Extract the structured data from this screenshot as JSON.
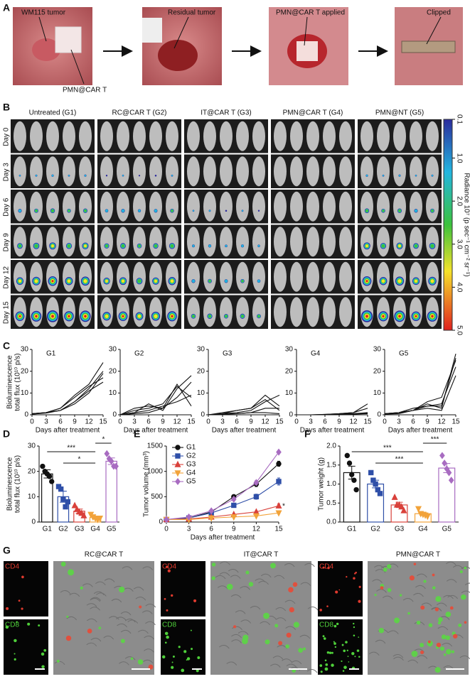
{
  "panel_a": {
    "letter": "A",
    "labels": [
      "WM115 tumor",
      "PMN@CAR T",
      "Residual tumor",
      "PMN@CAR T applied",
      "Clipped"
    ]
  },
  "panel_b": {
    "letter": "B",
    "groups": [
      "Untreated (G1)",
      "RC@CAR T (G2)",
      "IT@CAR T (G3)",
      "PMN@CAR T (G4)",
      "PMN@NT (G5)"
    ],
    "days": [
      "Day 0",
      "Day 3",
      "Day 6",
      "Day 9",
      "Day 12",
      "Day 15"
    ],
    "colorbar": {
      "label": "Radiance 10⁷ (p sec⁻¹ cm⁻² sr⁻¹)",
      "lim": [
        0.1,
        5
      ],
      "ticks": [
        0.1,
        {
          "value": 1,
          "label": "1.0"
        },
        {
          "value": 2,
          "label": "2.0"
        },
        {
          "value": 3,
          "label": "3.0"
        },
        {
          "value": 4,
          "label": "4.0"
        },
        {
          "value": 5,
          "label": "5.0"
        }
      ]
    }
  },
  "chart_data": [
    {
      "type": "line",
      "panel": "C",
      "title": "G1",
      "color": "#111111",
      "ylabel": [
        "Bioluminescence",
        "total flux (10¹⁰ p/s)"
      ],
      "xlabel": "Days after treatment",
      "x": [
        0,
        3,
        6,
        9,
        12,
        15
      ],
      "xlim": [
        0,
        15
      ],
      "xticks": [
        0,
        3,
        6,
        9,
        12,
        15
      ],
      "ylim": [
        0,
        30
      ],
      "yticks": [
        0,
        10,
        20,
        30
      ],
      "series": [
        {
          "values": [
            0.5,
            1,
            3,
            9,
            14,
            24
          ]
        },
        {
          "values": [
            0.5,
            1,
            2,
            6,
            12,
            20
          ]
        },
        {
          "values": [
            0.3,
            0.8,
            2,
            5,
            10,
            19
          ]
        },
        {
          "values": [
            0.5,
            1,
            3,
            8,
            13,
            17
          ]
        },
        {
          "values": [
            0.3,
            1,
            2,
            6,
            11,
            15
          ]
        }
      ]
    },
    {
      "type": "line",
      "title": "G2",
      "color": "#111111",
      "xlabel": "Days after treatment",
      "x": [
        0,
        3,
        6,
        9,
        12,
        15
      ],
      "xlim": [
        0,
        15
      ],
      "xticks": [
        0,
        3,
        6,
        9,
        12,
        15
      ],
      "ylim": [
        0,
        30
      ],
      "yticks": [
        0,
        10,
        20,
        30
      ],
      "series": [
        {
          "values": [
            0,
            1,
            5,
            2,
            12,
            18
          ]
        },
        {
          "values": [
            0,
            3,
            4,
            3,
            8,
            15
          ]
        },
        {
          "values": [
            0,
            2,
            3,
            5,
            13,
            8
          ]
        },
        {
          "values": [
            0,
            1,
            2,
            4,
            6,
            9
          ]
        },
        {
          "values": [
            0,
            0.5,
            1,
            3,
            14,
            4
          ]
        }
      ]
    },
    {
      "type": "line",
      "title": "G3",
      "color": "#111111",
      "xlabel": "Days after treatment",
      "x": [
        0,
        3,
        6,
        9,
        12,
        15
      ],
      "xlim": [
        0,
        15
      ],
      "xticks": [
        0,
        3,
        6,
        9,
        12,
        15
      ],
      "ylim": [
        0,
        30
      ],
      "yticks": [
        0,
        10,
        20,
        30
      ],
      "series": [
        {
          "values": [
            0,
            1,
            2,
            3,
            9,
            4
          ]
        },
        {
          "values": [
            0,
            0.5,
            1,
            2,
            6,
            9
          ]
        },
        {
          "values": [
            0,
            0.5,
            2,
            3,
            7,
            2
          ]
        },
        {
          "values": [
            0,
            0.3,
            0.5,
            1,
            3,
            3
          ]
        },
        {
          "values": [
            0,
            0.2,
            0.5,
            1,
            1,
            0.5
          ]
        }
      ]
    },
    {
      "type": "line",
      "title": "G4",
      "color": "#111111",
      "xlabel": "Days after treatment",
      "x": [
        0,
        3,
        6,
        9,
        12,
        15
      ],
      "xlim": [
        0,
        15
      ],
      "xticks": [
        0,
        3,
        6,
        9,
        12,
        15
      ],
      "ylim": [
        0,
        30
      ],
      "yticks": [
        0,
        10,
        20,
        30
      ],
      "series": [
        {
          "values": [
            0,
            0,
            0.2,
            0.5,
            1,
            5
          ]
        },
        {
          "values": [
            0,
            0,
            0.2,
            0.5,
            1,
            3
          ]
        },
        {
          "values": [
            0,
            0,
            0,
            0.3,
            0.5,
            1
          ]
        },
        {
          "values": [
            0,
            0,
            0,
            0.2,
            0.5,
            0.8
          ]
        },
        {
          "values": [
            0,
            0,
            0,
            0.1,
            0.3,
            0.5
          ]
        }
      ]
    },
    {
      "type": "line",
      "title": "G5",
      "color": "#111111",
      "xlabel": "Days after treatment",
      "x": [
        0,
        3,
        6,
        9,
        12,
        15
      ],
      "xlim": [
        0,
        15
      ],
      "xticks": [
        0,
        3,
        6,
        9,
        12,
        15
      ],
      "ylim": [
        0,
        30
      ],
      "yticks": [
        0,
        10,
        20,
        30
      ],
      "series": [
        {
          "values": [
            0.5,
            1,
            2,
            5,
            3,
            28
          ]
        },
        {
          "values": [
            0.5,
            1,
            2,
            4,
            4,
            26
          ]
        },
        {
          "values": [
            0.3,
            1,
            2,
            6,
            8,
            25
          ]
        },
        {
          "values": [
            0.5,
            1,
            3,
            4,
            5,
            22
          ]
        },
        {
          "values": [
            0.3,
            0.5,
            2,
            3,
            2,
            18
          ]
        }
      ]
    },
    {
      "type": "bar",
      "panel": "D",
      "ylabel": [
        "Bioluminescence",
        "total flux (10¹⁰ p/s)"
      ],
      "categories": [
        "G1",
        "G2",
        "G3",
        "G4",
        "G5"
      ],
      "values": [
        19,
        10,
        4.3,
        1.8,
        24
      ],
      "errors": [
        1.6,
        2.2,
        0.8,
        0.6,
        1.3
      ],
      "points": [
        [
          22,
          20,
          19,
          18,
          16
        ],
        [
          14,
          13,
          9,
          6,
          8
        ],
        [
          6.5,
          5,
          4,
          3.5,
          2.5
        ],
        [
          3,
          2,
          1.5,
          1,
          1.5
        ],
        [
          27,
          25,
          24,
          22,
          22
        ]
      ],
      "colors": [
        "#111111",
        "#2f4fa8",
        "#d9413b",
        "#f2a33a",
        "#a86cc1"
      ],
      "ylim": [
        0,
        30
      ],
      "yticks": [
        0,
        10,
        20,
        30
      ],
      "annotations": [
        {
          "text": "***",
          "between": [
            "G1",
            "G4"
          ]
        },
        {
          "text": "*",
          "between": [
            "G2",
            "G4"
          ]
        },
        {
          "text": "*",
          "between": [
            "G4",
            "G5"
          ]
        }
      ]
    },
    {
      "type": "line",
      "panel": "E",
      "ylabel": "Tumor volume (mm³)",
      "xlabel": "Days after treatment",
      "legend": "upper left",
      "x": [
        0,
        3,
        6,
        9,
        12,
        15
      ],
      "xlim": [
        0,
        15
      ],
      "xticks": [
        0,
        3,
        6,
        9,
        12,
        15
      ],
      "ylim": [
        0,
        1500
      ],
      "yticks": [
        0,
        500,
        1000,
        1500
      ],
      "series": [
        {
          "name": "G1",
          "color": "#111111",
          "marker": "circle",
          "values": [
            50,
            80,
            200,
            500,
            750,
            1150
          ],
          "errors": [
            5,
            10,
            20,
            40,
            50,
            50
          ]
        },
        {
          "name": "G2",
          "color": "#2f4fa8",
          "marker": "square",
          "values": [
            50,
            80,
            180,
            330,
            500,
            800
          ],
          "errors": [
            5,
            10,
            20,
            30,
            50,
            70
          ]
        },
        {
          "name": "G3",
          "color": "#d9413b",
          "marker": "triangle",
          "values": [
            50,
            60,
            100,
            150,
            200,
            320
          ],
          "errors": [
            5,
            8,
            10,
            15,
            20,
            40
          ]
        },
        {
          "name": "G4",
          "color": "#f2a33a",
          "marker": "triangle-down",
          "values": [
            50,
            50,
            80,
            100,
            120,
            180
          ],
          "errors": [
            5,
            5,
            8,
            10,
            15,
            20
          ]
        },
        {
          "name": "G5",
          "color": "#a86cc1",
          "marker": "diamond",
          "values": [
            50,
            100,
            220,
            450,
            780,
            1380
          ],
          "errors": [
            5,
            10,
            20,
            30,
            40,
            30
          ]
        }
      ],
      "annotations": [
        {
          "text": "*"
        }
      ]
    },
    {
      "type": "bar",
      "panel": "F",
      "ylabel": "Tumor weight (g)",
      "categories": [
        "G1",
        "G2",
        "G3",
        "G4",
        "G5"
      ],
      "values": [
        1.3,
        1.0,
        0.45,
        0.22,
        1.42
      ],
      "errors": [
        0.17,
        0.1,
        0.07,
        0.04,
        0.12
      ],
      "points": [
        [
          1.75,
          1.55,
          1.25,
          1.1,
          0.85
        ],
        [
          1.3,
          1.1,
          1.0,
          0.85,
          0.75
        ],
        [
          0.65,
          0.45,
          0.45,
          0.4,
          0.3
        ],
        [
          0.35,
          0.22,
          0.2,
          0.18,
          0.15
        ],
        [
          1.75,
          1.55,
          1.4,
          1.3,
          1.1
        ]
      ],
      "colors": [
        "#111111",
        "#2f4fa8",
        "#d9413b",
        "#f2a33a",
        "#a86cc1"
      ],
      "ylim": [
        0,
        2
      ],
      "yticks": [
        {
          "value": 0,
          "label": "0.0"
        },
        0.5,
        {
          "value": 1,
          "label": "1.0"
        },
        1.5,
        {
          "value": 2,
          "label": "2.0"
        }
      ],
      "annotations": [
        {
          "text": "***",
          "between": [
            "G1",
            "G4"
          ]
        },
        {
          "text": "***",
          "between": [
            "G2",
            "G4"
          ]
        },
        {
          "text": "***",
          "between": [
            "G4",
            "G5"
          ]
        }
      ]
    }
  ],
  "panel_g": {
    "letter": "G",
    "columns": [
      {
        "title": "RC@CAR T",
        "top": "CD4",
        "bottom": "CD8"
      },
      {
        "title": "IT@CAR T",
        "top": "CD4",
        "bottom": "CD8"
      },
      {
        "title": "PMN@CAR T",
        "top": "CD4",
        "bottom": "CD8"
      }
    ]
  }
}
